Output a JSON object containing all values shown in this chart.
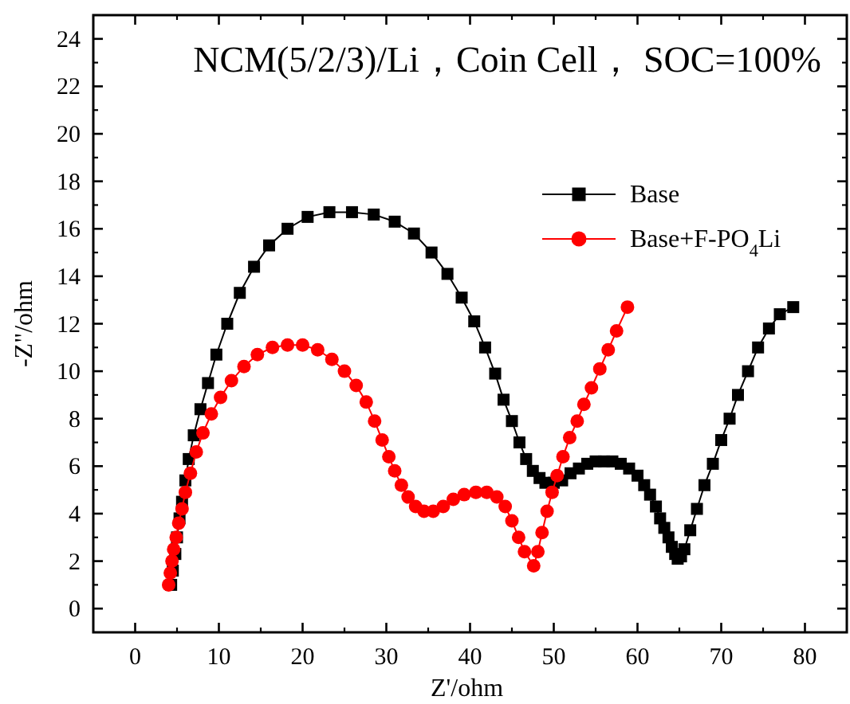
{
  "chart_data": {
    "type": "line",
    "title": "NCM(5/2/3)/Li，Coin Cell， SOC=100%",
    "xlabel": "Z'/ohm",
    "ylabel": "-Z\"/ohm",
    "xlim": [
      -5,
      85
    ],
    "ylim": [
      -1,
      25
    ],
    "xticks": [
      0,
      10,
      20,
      30,
      40,
      50,
      60,
      70,
      80
    ],
    "yticks": [
      0,
      2,
      4,
      6,
      8,
      10,
      12,
      14,
      16,
      18,
      20,
      22,
      24
    ],
    "legend": "top right",
    "grid": false,
    "line_style": "solid",
    "series": [
      {
        "name": "Base",
        "color": "#000000",
        "marker": "square",
        "x": [
          4.3,
          4.5,
          4.8,
          5.0,
          5.3,
          5.6,
          6.0,
          6.4,
          7.0,
          7.8,
          8.7,
          9.7,
          11,
          12.5,
          14.2,
          16,
          18.2,
          20.6,
          23.2,
          25.9,
          28.5,
          31,
          33.3,
          35.4,
          37.3,
          39,
          40.5,
          41.8,
          43,
          44,
          45,
          45.9,
          46.7,
          47.5,
          48.3,
          49,
          50,
          51,
          52,
          53,
          54,
          55,
          56,
          57,
          58,
          59,
          60,
          60.8,
          61.5,
          62.2,
          62.7,
          63.2,
          63.7,
          64.1,
          64.5,
          64.8,
          65.2,
          65.6,
          66.3,
          67.1,
          68,
          69,
          70,
          71,
          72,
          73.2,
          74.4,
          75.7,
          77,
          78.6
        ],
        "values": [
          1.0,
          1.6,
          2.3,
          3.0,
          3.8,
          4.5,
          5.4,
          6.3,
          7.3,
          8.4,
          9.5,
          10.7,
          12.0,
          13.3,
          14.4,
          15.3,
          16.0,
          16.5,
          16.7,
          16.7,
          16.6,
          16.3,
          15.8,
          15.0,
          14.1,
          13.1,
          12.1,
          11.0,
          9.9,
          8.8,
          7.9,
          7.0,
          6.3,
          5.8,
          5.5,
          5.3,
          5.3,
          5.4,
          5.7,
          5.9,
          6.1,
          6.2,
          6.2,
          6.2,
          6.1,
          5.9,
          5.6,
          5.2,
          4.8,
          4.3,
          3.8,
          3.4,
          3.0,
          2.6,
          2.3,
          2.1,
          2.2,
          2.5,
          3.3,
          4.2,
          5.2,
          6.1,
          7.1,
          8.0,
          9.0,
          10.0,
          11.0,
          11.8,
          12.4,
          12.7
        ]
      },
      {
        "name": "Base+F-PO$_{4}$Li",
        "color": "#ff0000",
        "marker": "circle",
        "x": [
          4.0,
          4.2,
          4.4,
          4.6,
          4.9,
          5.2,
          5.6,
          6.0,
          6.6,
          7.3,
          8.1,
          9.1,
          10.2,
          11.5,
          13,
          14.6,
          16.4,
          18.2,
          20,
          21.8,
          23.5,
          25,
          26.4,
          27.6,
          28.6,
          29.5,
          30.3,
          31,
          31.8,
          32.6,
          33.5,
          34.5,
          35.6,
          36.8,
          38,
          39.3,
          40.7,
          42,
          43.2,
          44.2,
          45,
          45.8,
          46.5,
          47.6,
          48.1,
          48.6,
          49.2,
          49.8,
          50.4,
          51.1,
          51.9,
          52.8,
          53.6,
          54.5,
          55.5,
          56.5,
          57.5,
          58.8
        ],
        "values": [
          1.0,
          1.5,
          2.0,
          2.5,
          3.0,
          3.6,
          4.2,
          4.9,
          5.7,
          6.6,
          7.4,
          8.2,
          8.9,
          9.6,
          10.2,
          10.7,
          11.0,
          11.1,
          11.1,
          10.9,
          10.5,
          10.0,
          9.4,
          8.7,
          7.9,
          7.1,
          6.4,
          5.8,
          5.2,
          4.7,
          4.3,
          4.1,
          4.1,
          4.3,
          4.6,
          4.8,
          4.9,
          4.9,
          4.7,
          4.3,
          3.7,
          3.0,
          2.4,
          1.8,
          2.4,
          3.2,
          4.1,
          4.9,
          5.6,
          6.4,
          7.2,
          7.9,
          8.6,
          9.3,
          10.1,
          10.9,
          11.7,
          12.7
        ]
      }
    ]
  }
}
